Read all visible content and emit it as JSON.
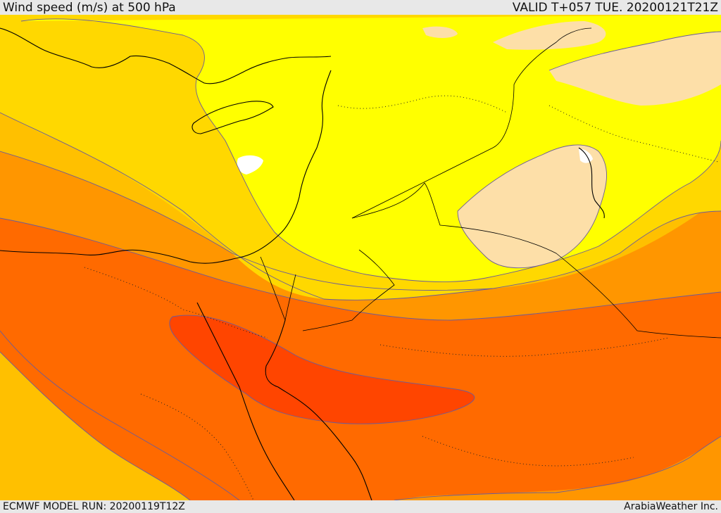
{
  "header": {
    "title": "Wind speed (m/s) at 500 hPa",
    "valid": "VALID T+057 TUE. 20200121T21Z"
  },
  "footer": {
    "model_run": "ECMWF MODEL RUN: 20200119T12Z",
    "credit": "ArabiaWeather Inc."
  },
  "map": {
    "variable": "wind speed at 500 hPa",
    "units": "m/s",
    "colors": {
      "white": "#ffffff",
      "pale_peach": "#fddfa8",
      "light_yellow": "#ffff00",
      "yellow": "#ffd800",
      "orange_light": "#ffc000",
      "orange": "#ff9600",
      "orange_dark": "#ff6a00",
      "red_orange": "#ff4500",
      "background": "#e8e8e8"
    }
  }
}
